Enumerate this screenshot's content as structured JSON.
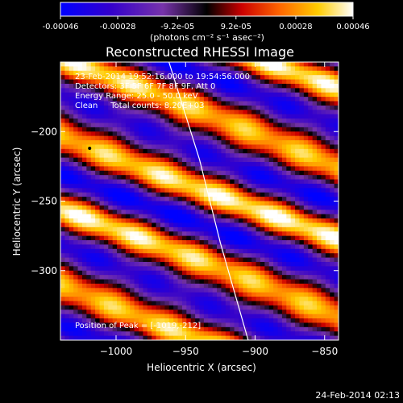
{
  "chart_data": {
    "type": "heatmap",
    "title": "Reconstructed RHESSI Image",
    "colorbar": {
      "tick_labels": [
        "-0.00046",
        "-0.00028",
        "-9.2e-05",
        "9.2e-05",
        "0.00028",
        "0.00046"
      ],
      "tick_values": [
        -0.00046,
        -0.00028,
        -9.2e-05,
        9.2e-05,
        0.00028,
        0.00046
      ],
      "range": [
        -0.00046,
        0.00046
      ],
      "unit_label": "(photons cm⁻² s⁻¹ asec⁻²)",
      "colormap": [
        "#0000ff",
        "#3300cc",
        "#7733aa",
        "#000000",
        "#cc0000",
        "#ff6600",
        "#ffcc00",
        "#ffffff"
      ]
    },
    "xlabel": "Heliocentric X (arcsec)",
    "ylabel": "Heliocentric Y (arcsec)",
    "xlim": [
      -1040,
      -840
    ],
    "ylim": [
      -350,
      -150
    ],
    "x_ticks": [
      -1000,
      -950,
      -900,
      -850
    ],
    "x_tick_labels": [
      "−1000",
      "−950",
      "−900",
      "−850"
    ],
    "y_ticks": [
      -200,
      -250,
      -300
    ],
    "y_tick_labels": [
      "−200",
      "−250",
      "−300"
    ],
    "annotations": {
      "line1": "23-Feb-2014 19:52:16.000 to 19:54:56.000",
      "line2": "Detectors: 3F 5F 6F 7F 8F 9F, Att 0",
      "line3": "Energy Range: 25.0 - 50.0 keV",
      "line4": "Clean     Total counts: 8.20E+03",
      "peak": "Position of Peak = [-1019,-212]"
    },
    "peak_position": [
      -1019,
      -212
    ],
    "limb_curve": [
      [
        -962,
        -150
      ],
      [
        -940,
        -220
      ],
      [
        -925,
        -280
      ],
      [
        -905,
        -350
      ]
    ],
    "timestamp": "24-Feb-2014 02:13"
  }
}
